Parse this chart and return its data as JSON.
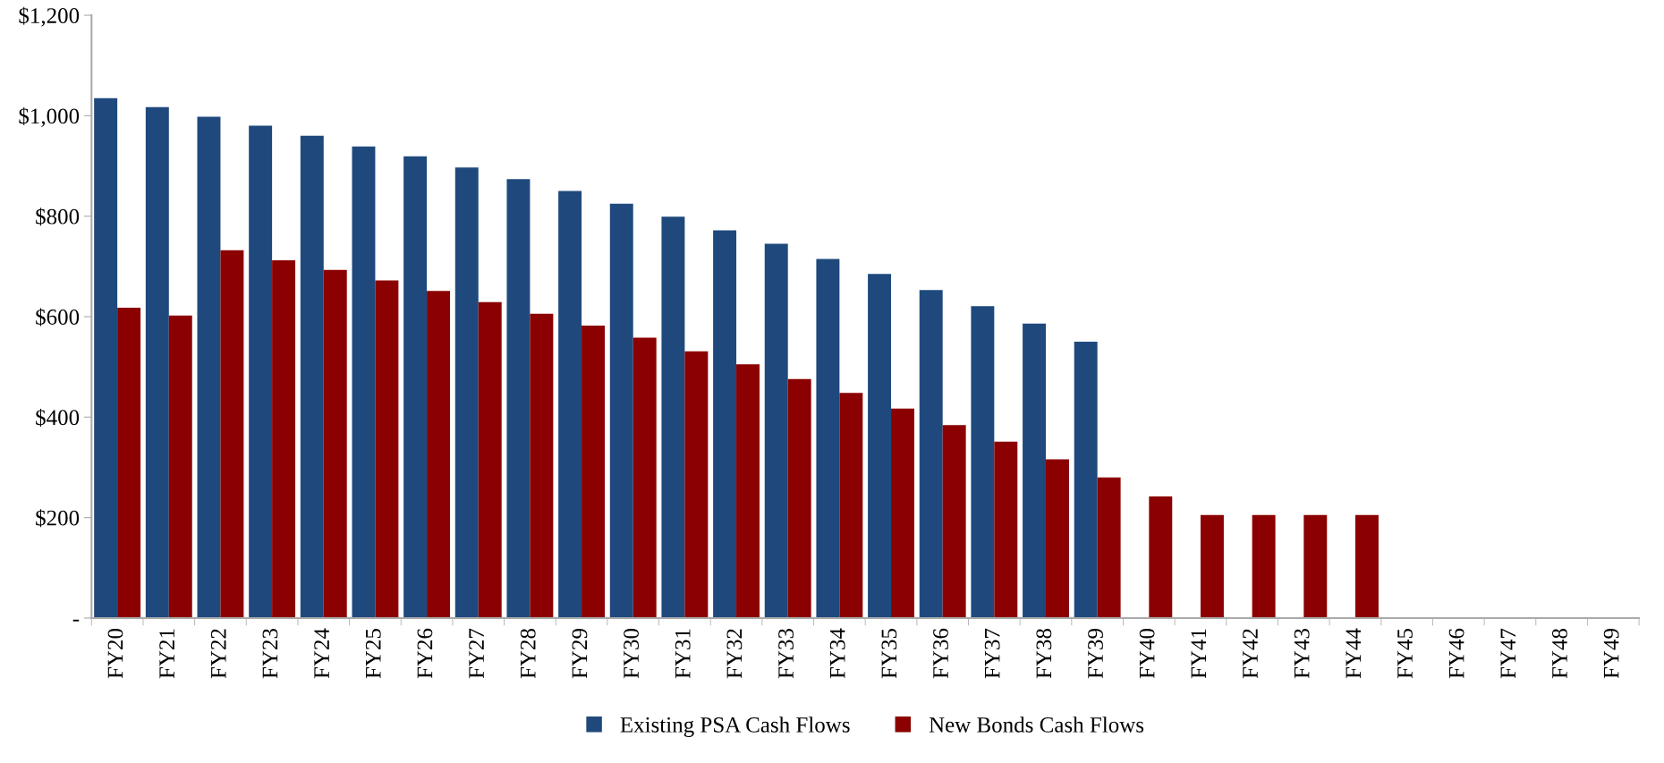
{
  "chart_data": {
    "type": "bar",
    "categories": [
      "FY20",
      "FY21",
      "FY22",
      "FY23",
      "FY24",
      "FY25",
      "FY26",
      "FY27",
      "FY28",
      "FY29",
      "FY30",
      "FY31",
      "FY32",
      "FY33",
      "FY34",
      "FY35",
      "FY36",
      "FY37",
      "FY38",
      "FY39",
      "FY40",
      "FY41",
      "FY42",
      "FY43",
      "FY44",
      "FY45",
      "FY46",
      "FY47",
      "FY48",
      "FY49"
    ],
    "series": [
      {
        "name": "Existing PSA Cash Flows",
        "color": "#1f497d",
        "values": [
          1035,
          1017,
          998,
          980,
          960,
          939,
          919,
          897,
          874,
          850,
          825,
          799,
          772,
          745,
          715,
          685,
          653,
          621,
          586,
          550,
          null,
          null,
          null,
          null,
          null,
          null,
          null,
          null,
          null,
          null
        ]
      },
      {
        "name": "New Bonds Cash Flows",
        "color": "#8b0000",
        "values": [
          618,
          602,
          732,
          712,
          693,
          672,
          651,
          629,
          606,
          582,
          558,
          531,
          505,
          476,
          448,
          417,
          384,
          351,
          316,
          280,
          242,
          205,
          205,
          205,
          205,
          null,
          null,
          null,
          null,
          null
        ]
      }
    ],
    "ylim": [
      0,
      1200
    ],
    "yticks": [
      {
        "value": 0,
        "label": "-"
      },
      {
        "value": 200,
        "label": "$200"
      },
      {
        "value": 400,
        "label": "$400"
      },
      {
        "value": 600,
        "label": "$600"
      },
      {
        "value": 800,
        "label": "$800"
      },
      {
        "value": 1000,
        "label": "$1,000"
      },
      {
        "value": 1200,
        "label": "$1,200"
      }
    ],
    "grid": false,
    "legend": "bottom"
  }
}
